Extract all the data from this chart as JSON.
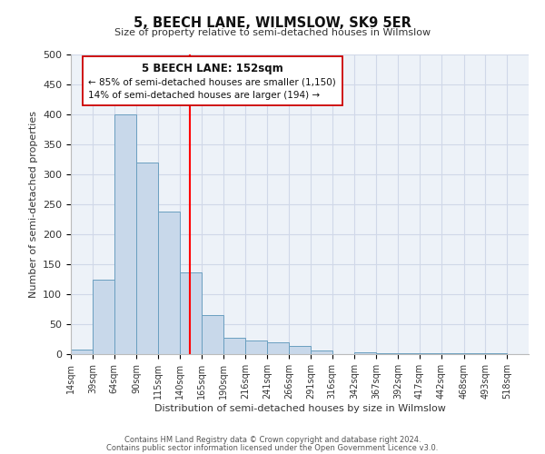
{
  "title": "5, BEECH LANE, WILMSLOW, SK9 5ER",
  "subtitle": "Size of property relative to semi-detached houses in Wilmslow",
  "xlabel": "Distribution of semi-detached houses by size in Wilmslow",
  "ylabel": "Number of semi-detached properties",
  "bar_color": "#c8d8ea",
  "bar_edgecolor": "#6a9fc0",
  "bar_left_edges": [
    14,
    39,
    64,
    90,
    115,
    140,
    165,
    190,
    216,
    241,
    266,
    291,
    316,
    342,
    367,
    392,
    417,
    442,
    468,
    493
  ],
  "bar_widths": [
    25,
    25,
    26,
    25,
    25,
    25,
    25,
    26,
    25,
    25,
    25,
    25,
    26,
    25,
    25,
    25,
    25,
    26,
    25,
    25
  ],
  "bar_heights": [
    8,
    125,
    400,
    320,
    238,
    136,
    65,
    27,
    23,
    20,
    14,
    6,
    0,
    3,
    1,
    1,
    1,
    1,
    1,
    1
  ],
  "tick_labels": [
    "14sqm",
    "39sqm",
    "64sqm",
    "90sqm",
    "115sqm",
    "140sqm",
    "165sqm",
    "190sqm",
    "216sqm",
    "241sqm",
    "266sqm",
    "291sqm",
    "316sqm",
    "342sqm",
    "367sqm",
    "392sqm",
    "417sqm",
    "442sqm",
    "468sqm",
    "493sqm",
    "518sqm"
  ],
  "tick_positions": [
    14,
    39,
    64,
    90,
    115,
    140,
    165,
    190,
    216,
    241,
    266,
    291,
    316,
    342,
    367,
    392,
    417,
    442,
    468,
    493,
    518
  ],
  "ylim": [
    0,
    500
  ],
  "xlim": [
    14,
    543
  ],
  "red_line_x": 152,
  "annotation_title": "5 BEECH LANE: 152sqm",
  "annotation_line1": "← 85% of semi-detached houses are smaller (1,150)",
  "annotation_line2": "14% of semi-detached houses are larger (194) →",
  "footnote1": "Contains HM Land Registry data © Crown copyright and database right 2024.",
  "footnote2": "Contains public sector information licensed under the Open Government Licence v3.0.",
  "grid_color": "#d0d8e8",
  "background_color": "#edf2f8"
}
